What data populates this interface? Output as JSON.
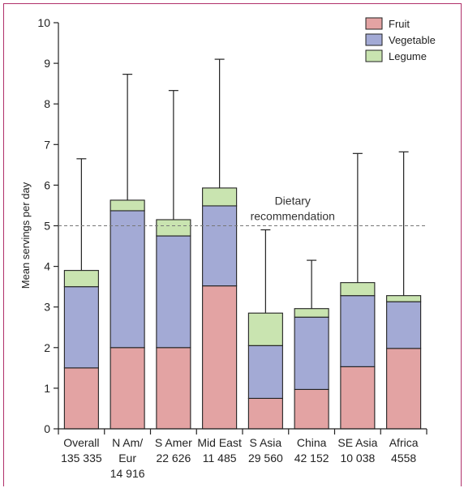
{
  "chart_data": {
    "type": "bar",
    "stacked": true,
    "ylabel": "Mean servings per day",
    "ylim": [
      0,
      10
    ],
    "yticks": [
      "0",
      "1",
      "2",
      "3",
      "4",
      "5",
      "6",
      "7",
      "8",
      "9",
      "10"
    ],
    "categories": [
      {
        "lines": [
          "Overall",
          "135 335"
        ]
      },
      {
        "lines": [
          "N Am/",
          "Eur",
          "14 916"
        ]
      },
      {
        "lines": [
          "S Amer",
          "22 626"
        ]
      },
      {
        "lines": [
          "Mid East",
          "11 485"
        ]
      },
      {
        "lines": [
          "S Asia",
          "29 560"
        ]
      },
      {
        "lines": [
          "China",
          "42 152"
        ]
      },
      {
        "lines": [
          "SE Asia",
          "10 038"
        ]
      },
      {
        "lines": [
          "Africa",
          "4558"
        ]
      }
    ],
    "series": [
      {
        "name": "Fruit",
        "color": "#e3a3a3",
        "values": [
          1.5,
          2.0,
          2.0,
          3.52,
          0.75,
          0.97,
          1.53,
          1.98
        ]
      },
      {
        "name": "Vegetable",
        "color": "#a3aad5",
        "values": [
          2.0,
          3.37,
          2.75,
          1.97,
          1.3,
          1.78,
          1.75,
          1.15
        ]
      },
      {
        "name": "Legume",
        "color": "#c9e4b0",
        "values": [
          0.4,
          0.26,
          0.4,
          0.44,
          0.8,
          0.21,
          0.32,
          0.15
        ]
      }
    ],
    "error_bar_upper": [
      6.65,
      8.73,
      8.33,
      9.1,
      4.9,
      4.15,
      6.78,
      6.82
    ],
    "reference_line": {
      "value": 5,
      "label_lines": [
        "Dietary",
        "recommendation"
      ]
    },
    "legend_position": "top-right",
    "grid": false
  }
}
